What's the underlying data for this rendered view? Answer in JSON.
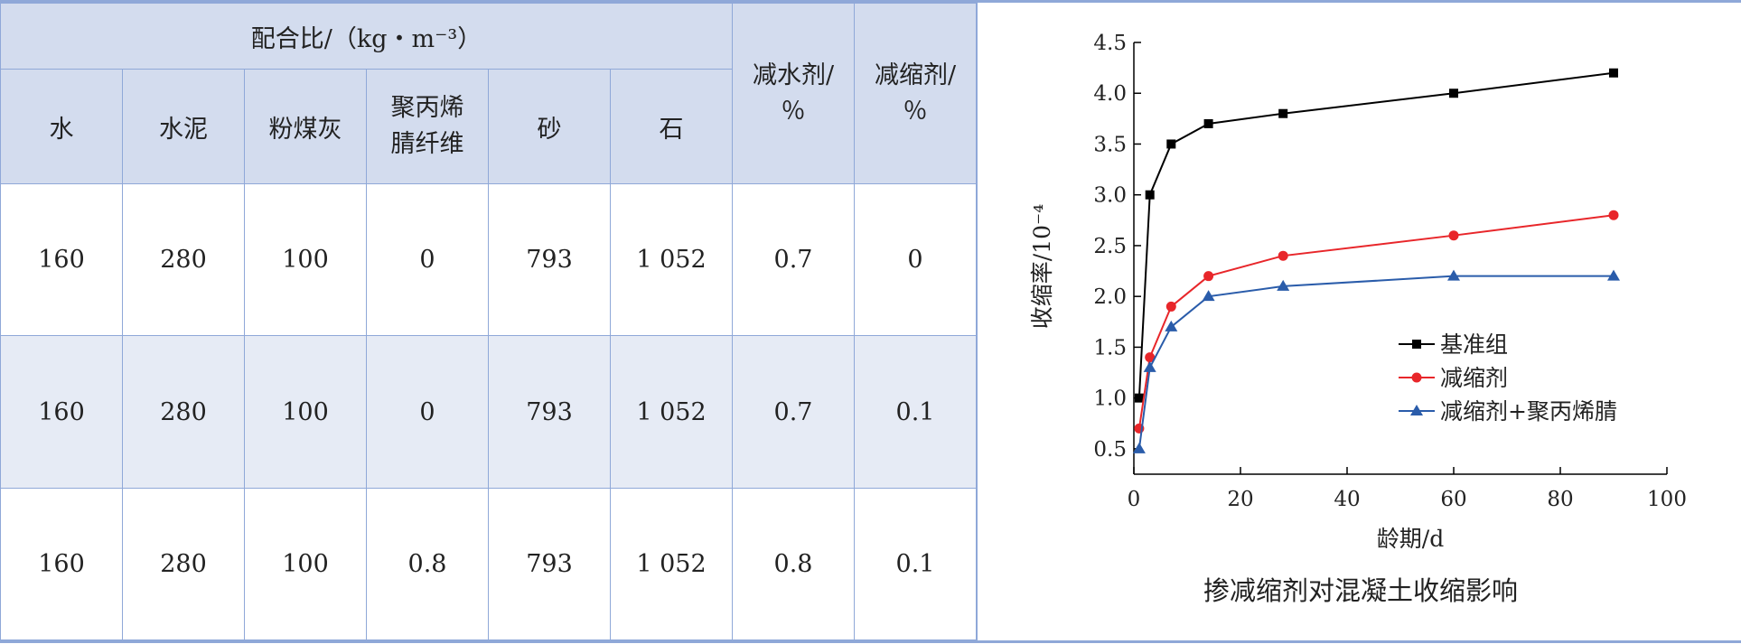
{
  "table": {
    "header": {
      "group": "配合比/（kg・m⁻³）",
      "columns": [
        "水",
        "水泥",
        "粉煤灰",
        "聚丙烯腈纤维",
        "砂",
        "石"
      ],
      "extra": [
        "减水剂/％",
        "减缩剂/％"
      ]
    },
    "rows": [
      [
        "160",
        "280",
        "100",
        "0",
        "793",
        "1 052",
        "0.7",
        "0"
      ],
      [
        "160",
        "280",
        "100",
        "0",
        "793",
        "1 052",
        "0.7",
        "0.1"
      ],
      [
        "160",
        "280",
        "100",
        "0.8",
        "793",
        "1 052",
        "0.8",
        "0.1"
      ]
    ]
  },
  "chart_data": {
    "type": "line",
    "title": "掺减缩剂对混凝土收缩影响",
    "x_label": "龄期/d",
    "y_label": "收缩率/10⁻⁴",
    "x": [
      1,
      3,
      7,
      14,
      28,
      60,
      90
    ],
    "series": [
      {
        "name": "基准组",
        "color": "#000000",
        "marker": "square",
        "values": [
          1.0,
          3.0,
          3.5,
          3.7,
          3.8,
          4.0,
          4.2
        ]
      },
      {
        "name": "减缩剂",
        "color": "#e8262a",
        "marker": "circle",
        "values": [
          0.7,
          1.4,
          1.9,
          2.2,
          2.4,
          2.6,
          2.8
        ]
      },
      {
        "name": "减缩剂+聚丙烯腈",
        "color": "#2a5caa",
        "marker": "triangle",
        "values": [
          0.5,
          1.3,
          1.7,
          2.0,
          2.1,
          2.2,
          2.2
        ]
      }
    ],
    "xlim": [
      0,
      100
    ],
    "xticks": [
      0,
      20,
      40,
      60,
      80,
      100
    ],
    "ylim": [
      0.25,
      4.5
    ],
    "yticks": [
      0.5,
      {
        "value": 1,
        "label": "1.0"
      },
      1.5,
      {
        "value": 2,
        "label": "2.0"
      },
      2.5,
      {
        "value": 3,
        "label": "3.0"
      },
      3.5,
      {
        "value": 4,
        "label": "4.0"
      },
      4.5
    ],
    "legend": "center-right"
  }
}
